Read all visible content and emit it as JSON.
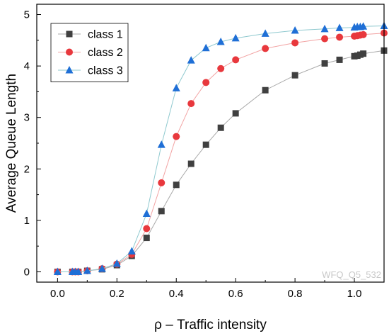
{
  "chart_data": {
    "type": "line",
    "title": "",
    "xlabel": "ρ – Traffic intensity",
    "ylabel": "Average Queue Length",
    "xlim": [
      -0.07,
      1.1
    ],
    "ylim": [
      -0.2,
      5.2
    ],
    "xticks": [
      0.0,
      0.2,
      0.4,
      0.6,
      0.8,
      1.0
    ],
    "xtick_labels": [
      "0.0",
      "0.2",
      "0.4",
      "0.6",
      "0.8",
      "1.0"
    ],
    "yticks": [
      0,
      1,
      2,
      3,
      4,
      5
    ],
    "ytick_labels": [
      "0",
      "1",
      "2",
      "3",
      "4",
      "5"
    ],
    "grid": false,
    "legend_position": "top-left",
    "annotation": "WFQ_Q5_532",
    "series": [
      {
        "name": "class 1",
        "marker": "square",
        "color": "#404040",
        "line_color": "#a8a8a8",
        "x": [
          0.0,
          0.05,
          0.06,
          0.07,
          0.1,
          0.15,
          0.2,
          0.25,
          0.3,
          0.35,
          0.4,
          0.45,
          0.5,
          0.55,
          0.6,
          0.7,
          0.8,
          0.9,
          0.95,
          1.0,
          1.01,
          1.02,
          1.03,
          1.1
        ],
        "y": [
          0.0,
          0.0,
          0.0,
          0.0,
          0.02,
          0.05,
          0.13,
          0.31,
          0.66,
          1.18,
          1.69,
          2.1,
          2.47,
          2.8,
          3.08,
          3.53,
          3.82,
          4.05,
          4.12,
          4.19,
          4.2,
          4.22,
          4.24,
          4.3
        ]
      },
      {
        "name": "class 2",
        "marker": "circle",
        "color": "#e8383d",
        "line_color": "#f2a3a3",
        "x": [
          0.0,
          0.05,
          0.06,
          0.07,
          0.1,
          0.15,
          0.2,
          0.25,
          0.3,
          0.35,
          0.4,
          0.45,
          0.5,
          0.55,
          0.6,
          0.7,
          0.8,
          0.9,
          0.95,
          1.0,
          1.01,
          1.02,
          1.03,
          1.1
        ],
        "y": [
          0.0,
          0.0,
          0.0,
          0.0,
          0.02,
          0.06,
          0.15,
          0.34,
          0.84,
          1.73,
          2.63,
          3.27,
          3.68,
          3.95,
          4.12,
          4.34,
          4.45,
          4.53,
          4.56,
          4.58,
          4.59,
          4.6,
          4.61,
          4.64
        ]
      },
      {
        "name": "class 3",
        "marker": "triangle",
        "color": "#1f6fd6",
        "line_color": "#8fc9cf",
        "x": [
          0.0,
          0.05,
          0.06,
          0.07,
          0.1,
          0.15,
          0.2,
          0.25,
          0.3,
          0.35,
          0.4,
          0.45,
          0.5,
          0.55,
          0.6,
          0.7,
          0.8,
          0.9,
          0.95,
          1.0,
          1.01,
          1.02,
          1.03,
          1.1
        ],
        "y": [
          0.0,
          0.0,
          0.0,
          0.0,
          0.02,
          0.06,
          0.16,
          0.4,
          1.13,
          2.47,
          3.57,
          4.11,
          4.35,
          4.47,
          4.54,
          4.63,
          4.69,
          4.72,
          4.74,
          4.75,
          4.76,
          4.76,
          4.77,
          4.78
        ]
      }
    ]
  }
}
